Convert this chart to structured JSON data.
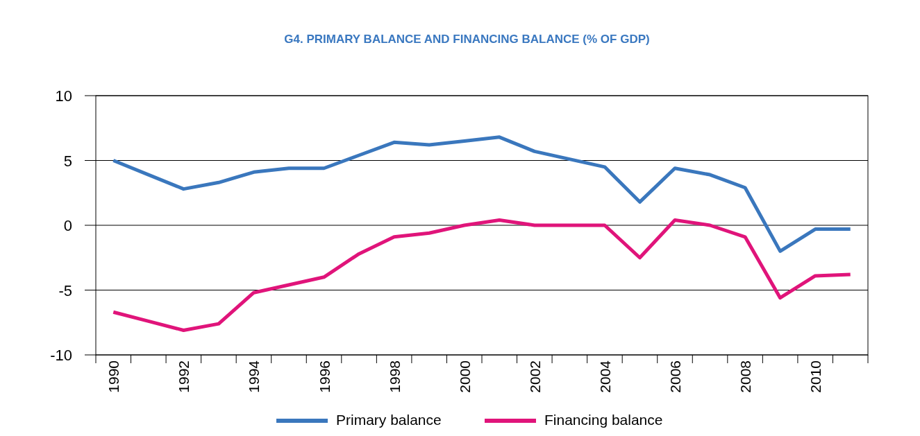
{
  "chart_data": {
    "type": "line",
    "title": "G4. PRIMARY BALANCE AND FINANCING BALANCE (% OF GDP)",
    "categories": [
      "1990",
      null,
      "1992",
      null,
      "1994",
      null,
      "1996",
      null,
      "1998",
      null,
      "2000",
      null,
      "2002",
      null,
      "2004",
      null,
      "2006",
      null,
      "2008",
      null,
      "2010",
      null
    ],
    "series": [
      {
        "name": "Primary balance",
        "color": "#3a77bd",
        "values": [
          5.0,
          3.9,
          2.8,
          3.3,
          4.1,
          4.4,
          4.4,
          5.4,
          6.4,
          6.2,
          6.5,
          6.8,
          5.7,
          5.1,
          4.5,
          1.8,
          4.4,
          3.9,
          2.9,
          -2.0,
          -0.3,
          -0.3
        ]
      },
      {
        "name": "Financing balance",
        "color": "#e0147a",
        "values": [
          -6.7,
          -7.4,
          -8.1,
          -7.6,
          -5.2,
          -4.6,
          -4.0,
          -2.2,
          -0.9,
          -0.6,
          0.0,
          0.4,
          0.0,
          0.0,
          0.0,
          -2.5,
          0.4,
          0.0,
          -0.9,
          -5.6,
          -3.9,
          -3.8
        ]
      }
    ],
    "ylim": [
      -10,
      10
    ],
    "yticks": [
      -10,
      -5,
      0,
      5,
      10
    ],
    "grid": "y",
    "legend": "bottom",
    "marker": "none",
    "line_style": "solid"
  }
}
